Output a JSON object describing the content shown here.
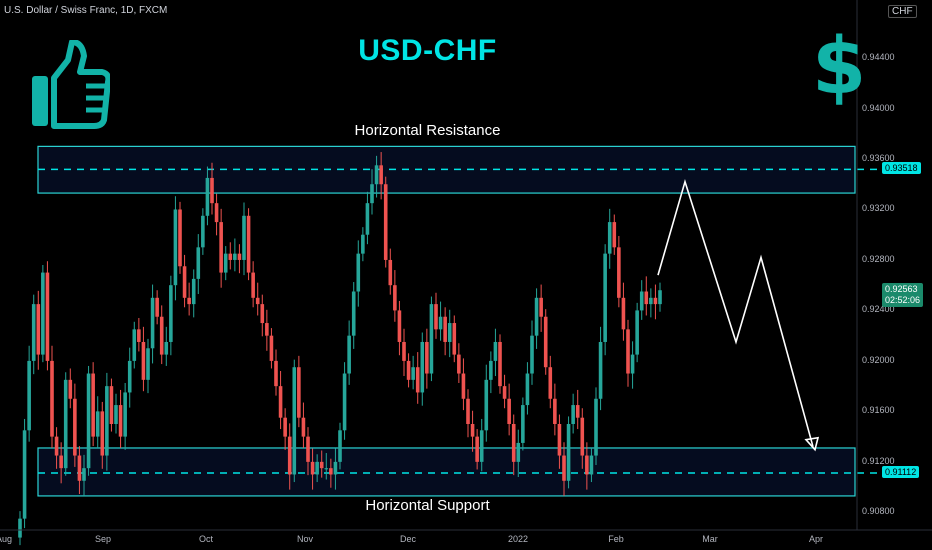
{
  "header": {
    "symbol_line": "U.S. Dollar / Swiss Franc, 1D, FXCM",
    "currency": "CHF"
  },
  "title": "USD-CHF",
  "resistance_label": "Horizontal Resistance",
  "support_label": "Horizontal Support",
  "icons": {
    "left": "thumbs-up-icon",
    "right": "dollar-sign-icon"
  },
  "colors": {
    "accent": "#00e5e5",
    "bull": "#26a69a",
    "bear": "#ef5350",
    "zone_border": "#2bd4d4",
    "icon": "#12b3a8"
  },
  "chart_data": {
    "type": "candlestick",
    "y_ticks": [
      "0.94400",
      "0.94000",
      "0.93600",
      "0.93200",
      "0.92800",
      "0.92400",
      "0.92000",
      "0.91600",
      "0.91200",
      "0.90800"
    ],
    "x_ticks": [
      "Aug",
      "Sep",
      "Oct",
      "Nov",
      "Dec",
      "2022",
      "Feb",
      "Mar",
      "Apr"
    ],
    "ylim": [
      0.9066,
      0.9486
    ],
    "resistance_zone": {
      "low": 0.9333,
      "high": 0.937,
      "level": 0.93518,
      "level_label": "0.93518"
    },
    "support_zone": {
      "low": 0.9093,
      "high": 0.9131,
      "level": 0.91112,
      "level_label": "0.91112"
    },
    "last_price": {
      "value": 0.92563,
      "label": "0.92563",
      "countdown": "02:52:06"
    },
    "projection_path": [
      0.9268,
      0.9342,
      0.9215,
      0.9282,
      0.9132
    ],
    "closes": [
      0.9075,
      0.9145,
      0.92,
      0.9245,
      0.9205,
      0.927,
      0.92,
      0.914,
      0.9125,
      0.9115,
      0.9185,
      0.917,
      0.9125,
      0.9105,
      0.9115,
      0.919,
      0.914,
      0.916,
      0.9125,
      0.918,
      0.915,
      0.9165,
      0.914,
      0.9175,
      0.92,
      0.9225,
      0.9215,
      0.9185,
      0.921,
      0.925,
      0.9235,
      0.9205,
      0.9215,
      0.926,
      0.932,
      0.9275,
      0.925,
      0.9245,
      0.9265,
      0.929,
      0.9315,
      0.9345,
      0.9325,
      0.931,
      0.927,
      0.9285,
      0.928,
      0.9285,
      0.928,
      0.9315,
      0.927,
      0.925,
      0.9245,
      0.923,
      0.922,
      0.92,
      0.918,
      0.9155,
      0.914,
      0.911,
      0.9195,
      0.9155,
      0.914,
      0.912,
      0.911,
      0.912,
      0.9115,
      0.9115,
      0.911,
      0.912,
      0.9145,
      0.919,
      0.922,
      0.9255,
      0.9285,
      0.93,
      0.9325,
      0.934,
      0.9355,
      0.934,
      0.928,
      0.926,
      0.924,
      0.9215,
      0.92,
      0.9185,
      0.9195,
      0.9175,
      0.9215,
      0.919,
      0.9245,
      0.9225,
      0.9235,
      0.9215,
      0.923,
      0.9205,
      0.919,
      0.917,
      0.915,
      0.914,
      0.912,
      0.9145,
      0.9185,
      0.92,
      0.9215,
      0.918,
      0.917,
      0.915,
      0.912,
      0.9135,
      0.9165,
      0.919,
      0.922,
      0.925,
      0.9235,
      0.9195,
      0.917,
      0.915,
      0.9125,
      0.9105,
      0.915,
      0.9165,
      0.9155,
      0.9125,
      0.911,
      0.9125,
      0.917,
      0.9215,
      0.9285,
      0.931,
      0.929,
      0.925,
      0.9225,
      0.919,
      0.9205,
      0.924,
      0.9255,
      0.9245,
      0.925,
      0.9245,
      0.9256
    ]
  }
}
